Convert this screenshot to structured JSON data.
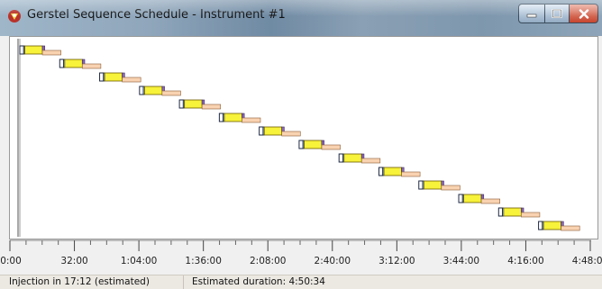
{
  "window": {
    "title": "Gerstel Sequence Schedule - Instrument #1"
  },
  "icons": {
    "app": "gerstel-logo-icon",
    "minimize": "minimize-icon",
    "maximize": "maximize-icon",
    "close": "close-icon"
  },
  "colors": {
    "bar_yellow": "#f7f23a",
    "bar_peach": "#f9d3b1",
    "bar_purple": "#8c67b5",
    "bar_blue": "#9fd0ff"
  },
  "chart_data": {
    "type": "gantt",
    "x_unit": "h:mm:ss",
    "x_ticks": [
      "0:00",
      "32:00",
      "1:04:00",
      "1:36:00",
      "2:08:00",
      "2:40:00",
      "3:12:00",
      "3:44:00",
      "4:16:00",
      "4:48:00"
    ],
    "x_range_minutes": [
      0,
      288
    ],
    "row_count": 14,
    "interval_minutes": 19.8,
    "segments_minutes": {
      "prep": 1.9,
      "inject": 0.6,
      "run": 8.7,
      "tail": 1.2,
      "post": 9.2
    }
  },
  "status": {
    "injection": "Injection in 17:12 (estimated)",
    "duration": "Estimated duration: 4:50:34"
  }
}
